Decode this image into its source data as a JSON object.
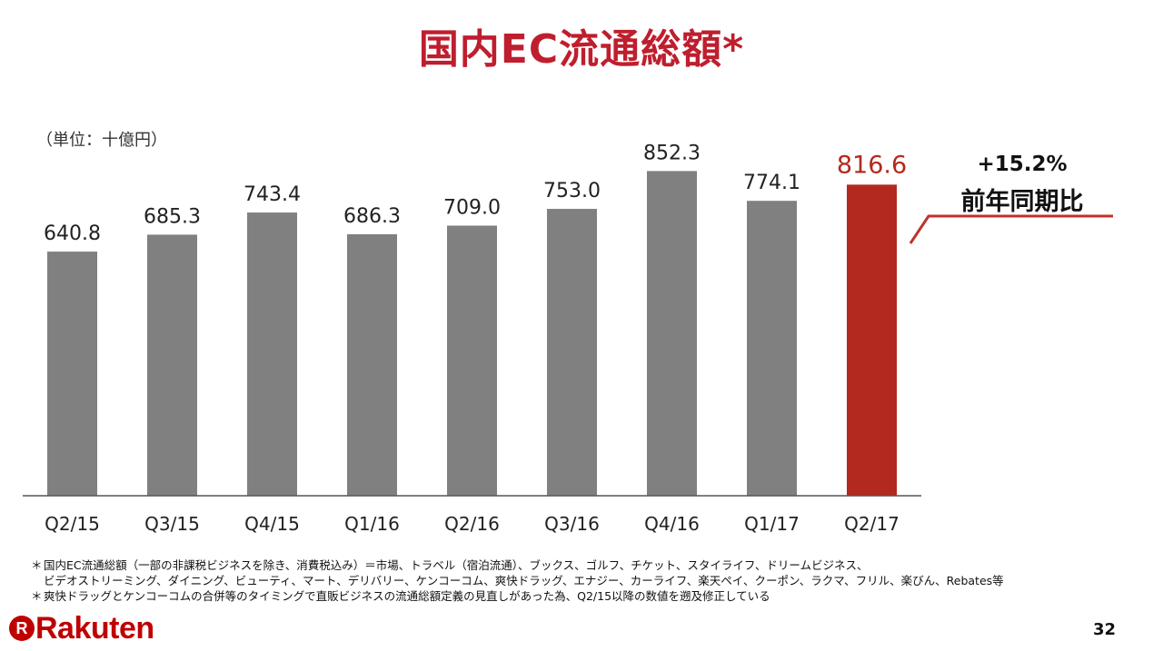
{
  "title": "国内EC流通総額*",
  "unit_label": "（単位：十億円）",
  "growth": {
    "value": "+15.2%",
    "label": "前年同期比"
  },
  "chart_data": {
    "type": "bar",
    "title": "国内EC流通総額*",
    "categories": [
      "Q2/15",
      "Q3/15",
      "Q4/15",
      "Q1/16",
      "Q2/16",
      "Q3/16",
      "Q4/16",
      "Q1/17",
      "Q2/17"
    ],
    "values": [
      640.8,
      685.3,
      743.4,
      686.3,
      709.0,
      753.0,
      852.3,
      774.1,
      816.6
    ],
    "value_labels": [
      "640.8",
      "685.3",
      "743.4",
      "686.3",
      "709.0",
      "753.0",
      "852.3",
      "774.1",
      "816.6"
    ],
    "highlight_index": 8,
    "ylim": [
      0,
      1000
    ],
    "grid": false,
    "colors": {
      "bar": "#808080",
      "highlight": "#b3291f",
      "axis": "#555555",
      "connector": "#c0312b"
    }
  },
  "notes": [
    {
      "mark": "＊",
      "text": "国内EC流通総額（一部の非課税ビジネスを除き、消費税込み）＝市場、トラベル（宿泊流通）、ブックス、ゴルフ、チケット、スタイライフ、ドリームビジネス、"
    },
    {
      "mark": "",
      "text": "ビデオストリーミング、ダイニング、ビューティ、マート、デリバリー、ケンコーコム、爽快ドラッグ、エナジー、カーライフ、楽天ペイ、クーポン、ラクマ、フリル、楽びん、Rebates等"
    },
    {
      "mark": "＊",
      "text": "爽快ドラッグとケンコーコムの合併等のタイミングで直販ビジネスの流通総額定義の見直しがあった為、Q2/15以降の数値を遡及修正している"
    }
  ],
  "logo_text": "Rakuten",
  "logo_mark": "R",
  "page_number": "32"
}
